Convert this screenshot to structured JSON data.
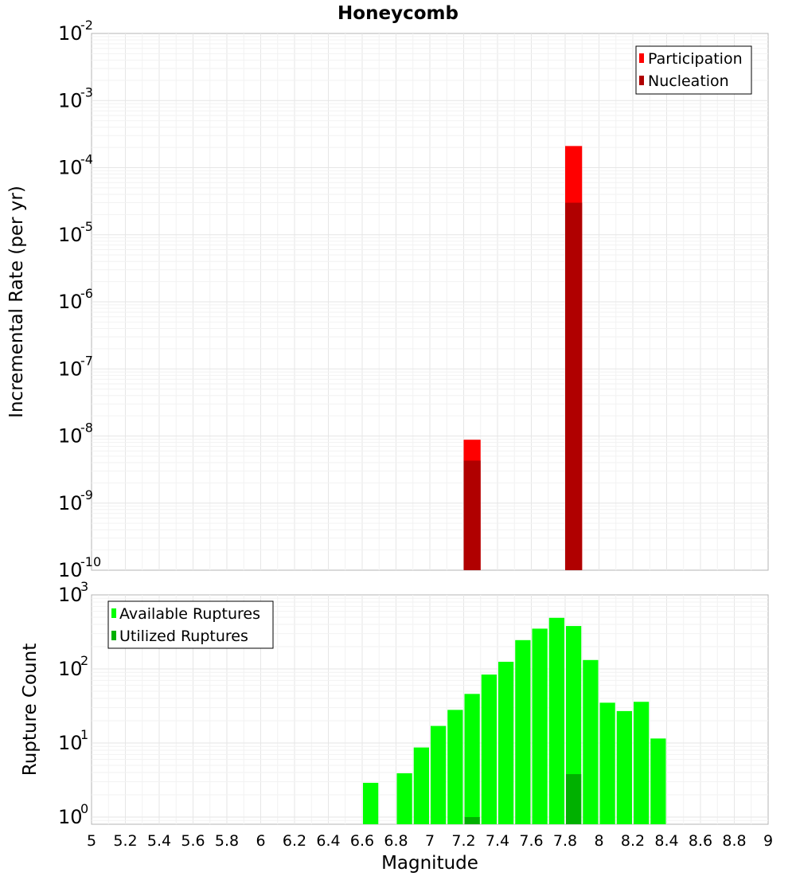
{
  "chart_data": [
    {
      "type": "bar",
      "title": "Honeycomb",
      "ylabel": "Incremental Rate (per yr)",
      "yscale": "log",
      "ylim": [
        1e-10,
        0.01
      ],
      "ytick_exponents": [
        "-10",
        "-9",
        "-8",
        "-7",
        "-6",
        "-5",
        "-4",
        "-3",
        "-2"
      ],
      "ytick_base": "10",
      "xlim": [
        5,
        9
      ],
      "legend": {
        "placement": "top-right"
      },
      "grid": true,
      "bin_width": 0.1,
      "series": [
        {
          "name": "Participation",
          "color": "#ff0000",
          "points": [
            {
              "x": 7.25,
              "y": 8.8e-09
            },
            {
              "x": 7.85,
              "y": 0.00021
            }
          ]
        },
        {
          "name": "Nucleation",
          "color": "#b00000",
          "points": [
            {
              "x": 7.25,
              "y": 4.3e-09
            },
            {
              "x": 7.85,
              "y": 3e-05
            }
          ]
        }
      ]
    },
    {
      "type": "bar",
      "xlabel": "Magnitude",
      "ylabel": "Rupture Count",
      "yscale": "log",
      "ylim": [
        0.8,
        1000
      ],
      "ytick_exponents": [
        "0",
        "1",
        "2",
        "3"
      ],
      "ytick_base": "10",
      "xlim": [
        5,
        9
      ],
      "xticks": [
        "5",
        "5.2",
        "5.4",
        "5.6",
        "5.8",
        "6",
        "6.2",
        "6.4",
        "6.6",
        "6.8",
        "7",
        "7.2",
        "7.4",
        "7.6",
        "7.8",
        "8",
        "8.2",
        "8.4",
        "8.6",
        "8.8",
        "9"
      ],
      "legend": {
        "placement": "top-left"
      },
      "grid": true,
      "bin_width": 0.1,
      "series": [
        {
          "name": "Available Ruptures",
          "color": "#00ff00",
          "points": [
            {
              "x": 6.65,
              "y": 2.9
            },
            {
              "x": 6.85,
              "y": 3.9
            },
            {
              "x": 6.95,
              "y": 8.7
            },
            {
              "x": 7.05,
              "y": 17
            },
            {
              "x": 7.15,
              "y": 28
            },
            {
              "x": 7.25,
              "y": 46
            },
            {
              "x": 7.35,
              "y": 84
            },
            {
              "x": 7.45,
              "y": 125
            },
            {
              "x": 7.55,
              "y": 245
            },
            {
              "x": 7.65,
              "y": 350
            },
            {
              "x": 7.75,
              "y": 490
            },
            {
              "x": 7.85,
              "y": 380
            },
            {
              "x": 7.95,
              "y": 132
            },
            {
              "x": 8.05,
              "y": 35
            },
            {
              "x": 8.15,
              "y": 27
            },
            {
              "x": 8.25,
              "y": 36
            },
            {
              "x": 8.35,
              "y": 11.5
            }
          ]
        },
        {
          "name": "Utilized Ruptures",
          "color": "#00b000",
          "points": [
            {
              "x": 7.25,
              "y": 1
            },
            {
              "x": 7.85,
              "y": 3.8
            }
          ]
        }
      ]
    }
  ]
}
